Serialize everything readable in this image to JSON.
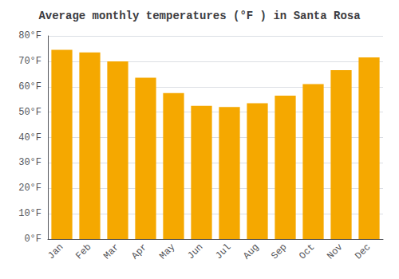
{
  "chart_data": {
    "type": "bar",
    "title": "Average monthly temperatures (°F ) in Santa Rosa",
    "categories": [
      "Jan",
      "Feb",
      "Mar",
      "Apr",
      "May",
      "Jun",
      "Jul",
      "Aug",
      "Sep",
      "Oct",
      "Nov",
      "Dec"
    ],
    "values": [
      74.5,
      73.5,
      70.0,
      63.5,
      57.5,
      52.5,
      52.0,
      53.5,
      56.5,
      61.0,
      66.5,
      71.5
    ],
    "color": "#F5A800",
    "ylim": [
      0,
      80
    ],
    "yticks": [
      {
        "value": 0,
        "label": "0°F"
      },
      {
        "value": 10,
        "label": "10°F"
      },
      {
        "value": 20,
        "label": "20°F"
      },
      {
        "value": 30,
        "label": "30°F"
      },
      {
        "value": 40,
        "label": "40°F"
      },
      {
        "value": 50,
        "label": "50°F"
      },
      {
        "value": 60,
        "label": "60°F"
      },
      {
        "value": 70,
        "label": "70°F"
      },
      {
        "value": 80,
        "label": "80°F"
      }
    ],
    "grid": true
  }
}
